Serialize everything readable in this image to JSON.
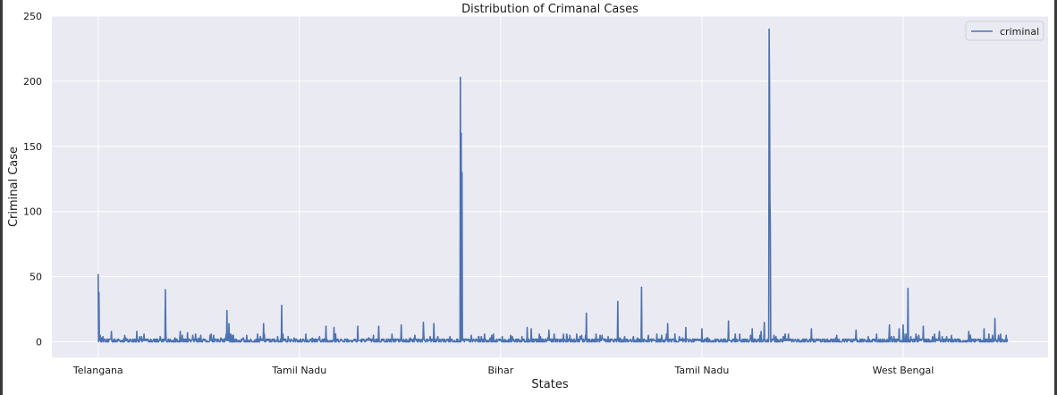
{
  "chart_data": {
    "type": "line",
    "title": "Distribution of Crimanal Cases",
    "xlabel": "States",
    "ylabel": "Criminal Case",
    "ylim": [
      -12,
      250
    ],
    "yticks": [
      0,
      50,
      100,
      150,
      200,
      250
    ],
    "xticks": [
      {
        "index": 0,
        "label": "Telangana"
      },
      {
        "index": 500,
        "label": "Tamil Nadu"
      },
      {
        "index": 1000,
        "label": "Bihar"
      },
      {
        "index": 1500,
        "label": "Tamil Nadu"
      },
      {
        "index": 2000,
        "label": "West Bengal"
      }
    ],
    "x_range": [
      -115,
      2360
    ],
    "n_points": 2260,
    "legend": {
      "position": "top-right",
      "entries": [
        "criminal"
      ]
    },
    "grid": true,
    "colors": {
      "line": "#4c72b0",
      "background": "#eaeaf2",
      "grid": "#ffffff"
    },
    "series": [
      {
        "name": "criminal",
        "baseline": 1,
        "peaks": [
          [
            0,
            52
          ],
          [
            2,
            38
          ],
          [
            5,
            5
          ],
          [
            12,
            4
          ],
          [
            33,
            8
          ],
          [
            66,
            5
          ],
          [
            96,
            8
          ],
          [
            167,
            40
          ],
          [
            168,
            9
          ],
          [
            204,
            8
          ],
          [
            222,
            7
          ],
          [
            255,
            5
          ],
          [
            320,
            24
          ],
          [
            325,
            14
          ],
          [
            411,
            14
          ],
          [
            456,
            28
          ],
          [
            516,
            6
          ],
          [
            566,
            12
          ],
          [
            586,
            11
          ],
          [
            645,
            12
          ],
          [
            697,
            12
          ],
          [
            753,
            13
          ],
          [
            808,
            15
          ],
          [
            834,
            14
          ],
          [
            900,
            203
          ],
          [
            902,
            160
          ],
          [
            904,
            130
          ],
          [
            960,
            6
          ],
          [
            1025,
            5
          ],
          [
            1066,
            11
          ],
          [
            1076,
            10
          ],
          [
            1120,
            9
          ],
          [
            1213,
            22
          ],
          [
            1291,
            31
          ],
          [
            1350,
            42
          ],
          [
            1415,
            14
          ],
          [
            1460,
            11
          ],
          [
            1500,
            10
          ],
          [
            1566,
            16
          ],
          [
            1625,
            10
          ],
          [
            1655,
            15
          ],
          [
            1647,
            8
          ],
          [
            1667,
            240
          ],
          [
            1668,
            200
          ],
          [
            1669,
            110
          ],
          [
            1670,
            90
          ],
          [
            1772,
            10
          ],
          [
            1883,
            9
          ],
          [
            1966,
            13
          ],
          [
            1990,
            10
          ],
          [
            2000,
            13
          ],
          [
            2012,
            41
          ],
          [
            2050,
            12
          ],
          [
            2090,
            8
          ],
          [
            2163,
            8
          ],
          [
            2201,
            10
          ],
          [
            2228,
            18
          ]
        ]
      }
    ]
  }
}
